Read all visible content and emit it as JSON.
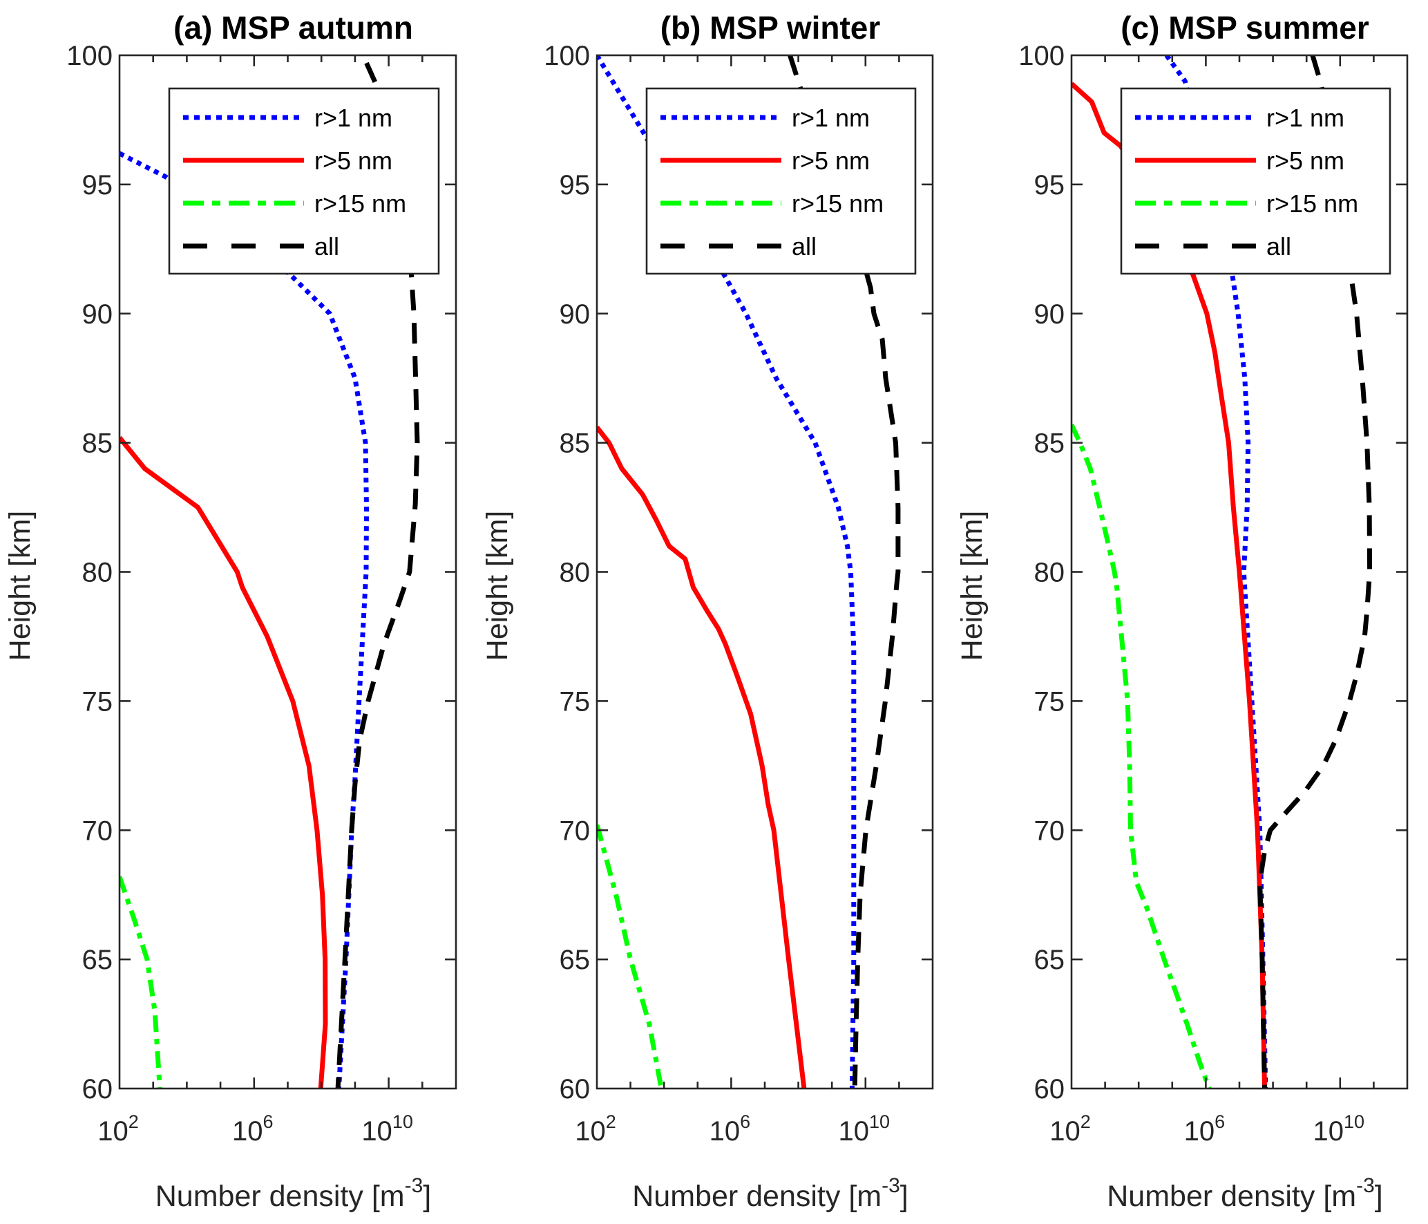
{
  "chart_data": [
    {
      "type": "line",
      "title": "(a) MSP autumn",
      "xlabel": "Number density [m^-3]",
      "xlabel_base": "Number density [m",
      "xlabel_sup": "-3",
      "xlabel_end": "]",
      "ylabel": "Height [km]",
      "xscale": "log",
      "xlim": [
        100.0,
        1000000000000.0
      ],
      "ylim": [
        60,
        100
      ],
      "xticks": [
        {
          "base": "10",
          "exp": "2",
          "value": 100.0
        },
        {
          "base": "10",
          "exp": "6",
          "value": 1000000.0
        },
        {
          "base": "10",
          "exp": "10",
          "value": 10000000000.0
        }
      ],
      "yticks": [
        60,
        65,
        70,
        75,
        80,
        85,
        90,
        95,
        100
      ],
      "grid": false,
      "legend": "top-right",
      "series": [
        {
          "name": "r>1 nm",
          "color": "#0000ff",
          "style": "dotted",
          "log10_x": [
            2.0,
            3.37,
            7.08,
            8.25,
            9.0,
            9.31,
            9.34,
            9.33,
            9.12,
            9.0,
            8.9,
            8.73,
            8.52
          ],
          "y": [
            96.2,
            95.3,
            91.5,
            90.0,
            87.5,
            85.0,
            82.5,
            80.0,
            75.0,
            72.0,
            70.0,
            65.0,
            60.0
          ]
        },
        {
          "name": "r>5 nm",
          "color": "#ff0000",
          "style": "solid",
          "log10_x": [
            2.0,
            2.75,
            4.33,
            5.5,
            5.65,
            6.39,
            7.15,
            7.63,
            7.87,
            8.03,
            8.11,
            8.12,
            7.98
          ],
          "y": [
            85.2,
            84.0,
            82.5,
            80.0,
            79.4,
            77.5,
            75.0,
            72.5,
            70.0,
            67.5,
            65.0,
            62.5,
            60.0
          ]
        },
        {
          "name": "r>15 nm",
          "color": "#00ff00",
          "style": "dashdot",
          "log10_x": [
            2.0,
            2.45,
            2.82,
            3.05,
            3.2
          ],
          "y": [
            68.2,
            66.5,
            65.0,
            63.0,
            60.0
          ]
        },
        {
          "name": "all",
          "color": "#000000",
          "style": "dashed",
          "log10_x": [
            9.34,
            9.65,
            10.1,
            10.65,
            10.75,
            10.85,
            10.79,
            10.62,
            10.33,
            9.86,
            9.39,
            9.14,
            9.0,
            8.9,
            8.7,
            8.49
          ],
          "y": [
            99.7,
            98.8,
            96.0,
            92.0,
            90.0,
            85.0,
            82.6,
            80.0,
            78.9,
            77.2,
            75.0,
            73.5,
            71.8,
            70.0,
            65.0,
            60.0
          ]
        }
      ]
    },
    {
      "type": "line",
      "title": "(b) MSP winter",
      "xlabel": "Number density [m^-3]",
      "xlabel_base": "Number density [m",
      "xlabel_sup": "-3",
      "xlabel_end": "]",
      "ylabel": "Height [km]",
      "xscale": "log",
      "xlim": [
        100.0,
        1000000000000.0
      ],
      "ylim": [
        60,
        100
      ],
      "xticks": [
        {
          "base": "10",
          "exp": "2",
          "value": 100.0
        },
        {
          "base": "10",
          "exp": "6",
          "value": 1000000.0
        },
        {
          "base": "10",
          "exp": "10",
          "value": 10000000000.0
        }
      ],
      "yticks": [
        60,
        65,
        70,
        75,
        80,
        85,
        90,
        95,
        100
      ],
      "grid": false,
      "legend": "top-right",
      "series": [
        {
          "name": "r>1 nm",
          "color": "#0000ff",
          "style": "dotted",
          "log10_x": [
            2.0,
            3.39,
            5.79,
            6.44,
            7.34,
            8.5,
            9.19,
            9.46,
            9.56,
            9.65,
            9.65,
            9.65,
            9.6
          ],
          "y": [
            100.0,
            97.0,
            91.5,
            90.0,
            87.5,
            85.0,
            82.5,
            81.0,
            80.0,
            77.0,
            70.0,
            65.0,
            60.0
          ]
        },
        {
          "name": "r>5 nm",
          "color": "#ff0000",
          "style": "solid",
          "log10_x": [
            2.0,
            2.36,
            2.74,
            3.36,
            3.77,
            4.15,
            4.63,
            4.87,
            5.28,
            5.62,
            5.83,
            6.17,
            6.58,
            6.92,
            7.1,
            7.27,
            7.71,
            8.17
          ],
          "y": [
            85.6,
            85.0,
            84.0,
            83.0,
            82.0,
            81.0,
            80.5,
            79.4,
            78.5,
            77.8,
            77.2,
            76.0,
            74.5,
            72.5,
            71.0,
            70.0,
            65.0,
            60.0
          ]
        },
        {
          "name": "r>15 nm",
          "color": "#00ff00",
          "style": "dashdot",
          "log10_x": [
            2.0,
            2.05,
            2.57,
            3.0,
            3.56,
            3.92
          ],
          "y": [
            70.2,
            70.0,
            67.5,
            65.0,
            62.5,
            60.0
          ]
        },
        {
          "name": "all",
          "color": "#000000",
          "style": "dashed",
          "log10_x": [
            7.75,
            8.12,
            9.3,
            10.15,
            10.25,
            10.5,
            10.6,
            10.9,
            10.97,
            10.97,
            10.92,
            10.8,
            10.59,
            10.32,
            10.01,
            9.84,
            9.77,
            9.72,
            9.68
          ],
          "y": [
            100.0,
            98.5,
            95.0,
            91.0,
            90.0,
            89.0,
            87.5,
            85.0,
            82.5,
            80.0,
            79.4,
            77.5,
            75.0,
            72.5,
            70.0,
            67.5,
            65.0,
            62.5,
            60.0
          ]
        }
      ]
    },
    {
      "type": "line",
      "title": "(c) MSP summer",
      "xlabel": "Number density [m^-3]",
      "xlabel_base": "Number density [m",
      "xlabel_sup": "-3",
      "xlabel_end": "]",
      "ylabel": "Height [km]",
      "xscale": "log",
      "xlim": [
        100.0,
        1000000000000.0
      ],
      "ylim": [
        60,
        100
      ],
      "xticks": [
        {
          "base": "10",
          "exp": "2",
          "value": 100.0
        },
        {
          "base": "10",
          "exp": "6",
          "value": 1000000.0
        },
        {
          "base": "10",
          "exp": "10",
          "value": 10000000000.0
        }
      ],
      "yticks": [
        60,
        65,
        70,
        75,
        80,
        85,
        90,
        95,
        100
      ],
      "grid": false,
      "legend": "top-right",
      "series": [
        {
          "name": "r>1 nm",
          "color": "#0000ff",
          "style": "dotted",
          "log10_x": [
            4.83,
            5.38,
            6.3,
            6.79,
            6.96,
            7.16,
            7.26,
            7.23,
            7.13,
            7.37,
            7.61,
            7.7,
            7.78
          ],
          "y": [
            100.0,
            99.0,
            94.0,
            91.5,
            90.0,
            87.5,
            85.0,
            82.5,
            80.0,
            75.0,
            70.0,
            65.0,
            60.0
          ]
        },
        {
          "name": "r>5 nm",
          "color": "#ff0000",
          "style": "solid",
          "log10_x": [
            2.0,
            2.6,
            2.97,
            3.45,
            4.6,
            5.62,
            6.03,
            6.27,
            6.44,
            6.68,
            6.82,
            7.0,
            7.3,
            7.54,
            7.68,
            7.75
          ],
          "y": [
            98.9,
            98.2,
            97.0,
            96.5,
            94.5,
            91.5,
            90.0,
            88.5,
            87.0,
            85.0,
            82.5,
            80.0,
            75.0,
            70.0,
            65.0,
            60.0
          ]
        },
        {
          "name": "r>15 nm",
          "color": "#00ff00",
          "style": "dashdot",
          "log10_x": [
            2.0,
            2.25,
            2.56,
            2.84,
            3.11,
            3.28,
            3.35,
            3.49,
            3.67,
            3.73,
            3.76,
            3.93,
            4.24,
            4.76,
            5.17,
            5.44,
            5.82,
            6.1
          ],
          "y": [
            85.7,
            85.0,
            84.0,
            82.5,
            81.0,
            80.0,
            79.4,
            77.5,
            75.0,
            72.5,
            70.0,
            68.0,
            67.0,
            65.0,
            63.5,
            62.5,
            61.0,
            60.0
          ]
        },
        {
          "name": "all",
          "color": "#000000",
          "style": "dashed",
          "log10_x": [
            9.18,
            9.43,
            10.0,
            10.32,
            10.49,
            10.66,
            10.8,
            10.87,
            10.88,
            10.8,
            10.73,
            10.49,
            10.28,
            9.87,
            9.5,
            8.95,
            8.26,
            7.92,
            7.75,
            7.61,
            7.68,
            7.75
          ],
          "y": [
            100.0,
            98.9,
            95.0,
            91.5,
            90.0,
            87.5,
            85.0,
            82.5,
            80.0,
            78.5,
            77.5,
            76.0,
            75.0,
            73.5,
            72.5,
            71.5,
            70.5,
            70.0,
            69.2,
            68.0,
            65.0,
            60.0
          ]
        }
      ]
    }
  ],
  "legend_entries": [
    "r>1 nm",
    "r>5 nm",
    "r>15 nm",
    "all"
  ]
}
